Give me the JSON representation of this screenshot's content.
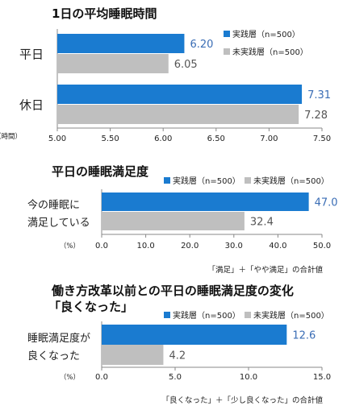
{
  "legend": {
    "practitioners": "実践層（n=500）",
    "non_practitioners": "未実践層（n=500）"
  },
  "colors": {
    "practitioners": "#1a7bd0",
    "non_practitioners": "#bfbfbf",
    "value_practitioners": "#3a6db5",
    "value_non_practitioners": "#555555"
  },
  "chart_data": [
    {
      "type": "bar",
      "orientation": "horizontal",
      "title": "1日の平均睡眠時間",
      "categories": [
        "平日",
        "休日"
      ],
      "series": [
        {
          "name": "実践層（n=500）",
          "values": [
            6.2,
            7.31
          ]
        },
        {
          "name": "未実践層（n=500）",
          "values": [
            6.05,
            7.28
          ]
        }
      ],
      "xlabel": "（時間）",
      "xlim": [
        5.0,
        7.5
      ],
      "ticks": [
        "5.00",
        "5.50",
        "6.00",
        "6.50",
        "7.00",
        "7.50"
      ],
      "value_decimals": 2,
      "legend_position": "top-right",
      "grid": false
    },
    {
      "type": "bar",
      "orientation": "horizontal",
      "title": "平日の睡眠満足度",
      "categories": [
        "今の睡眠に満足している"
      ],
      "category_lines": [
        [
          "今の睡眠に",
          "満足している"
        ]
      ],
      "series": [
        {
          "name": "実践層（n=500）",
          "values": [
            47.0
          ]
        },
        {
          "name": "未実践層（n=500）",
          "values": [
            32.4
          ]
        }
      ],
      "xlabel": "（%）",
      "xlim": [
        0.0,
        50.0
      ],
      "ticks": [
        "0.0",
        "10.0",
        "20.0",
        "30.0",
        "40.0",
        "50.0"
      ],
      "value_decimals": 1,
      "legend_position": "top",
      "note": "「満足」＋「やや満足」の合計値",
      "grid": false
    },
    {
      "type": "bar",
      "orientation": "horizontal",
      "title": "働き方改革以前との平日の睡眠満足度の変化",
      "subtitle": "「良くなった」",
      "categories": [
        "睡眠満足度が良くなった"
      ],
      "category_lines": [
        [
          "睡眠満足度が",
          "良くなった"
        ]
      ],
      "series": [
        {
          "name": "実践層（n=500）",
          "values": [
            12.6
          ]
        },
        {
          "name": "未実践層（n=500）",
          "values": [
            4.2
          ]
        }
      ],
      "xlabel": "（%）",
      "xlim": [
        0.0,
        15.0
      ],
      "ticks": [
        "0.0",
        "5.0",
        "10.0",
        "15.0"
      ],
      "value_decimals": 1,
      "legend_position": "top",
      "note": "「良くなった」＋「少し良くなった」の合計値",
      "grid": false
    }
  ]
}
